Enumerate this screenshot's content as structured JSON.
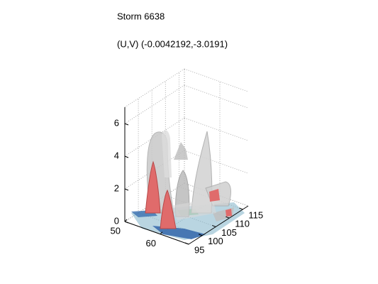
{
  "chart_data": {
    "type": "isosurface3d",
    "title": "Storm 6638",
    "subtitle": "(U,V) (-0.0042192,-3.0191)",
    "xlim": [
      50,
      68
    ],
    "xticks": [
      50,
      60
    ],
    "ylim": [
      95,
      117
    ],
    "yticks": [
      95,
      100,
      105,
      110,
      115
    ],
    "zlim": [
      0,
      7
    ],
    "zticks": [
      0,
      2,
      4,
      6
    ],
    "grid": true
  }
}
